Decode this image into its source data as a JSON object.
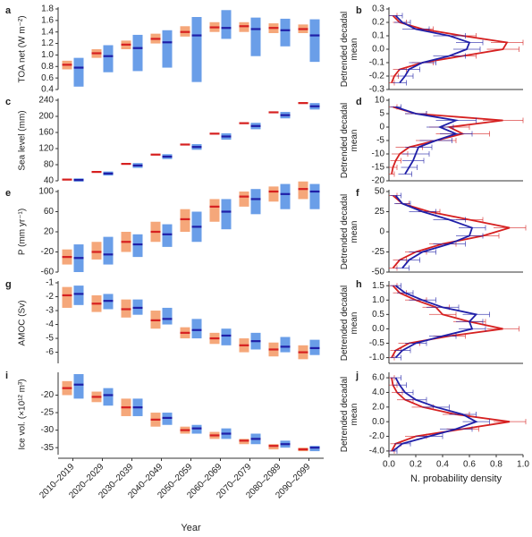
{
  "chart_data": [
    {
      "type": "range",
      "panel": "a",
      "ylabel": "TOA net (W m⁻²)",
      "ylim": [
        0.4,
        1.8
      ],
      "yticks": [
        0.4,
        0.6,
        0.8,
        {
          "value": 1,
          "label": "1.0"
        },
        1.2,
        1.4,
        1.6,
        1.8
      ],
      "series": [
        {
          "color": "#f5a77a",
          "line_color": "#d62020",
          "low": [
            0.75,
            0.95,
            1.1,
            1.2,
            1.32,
            1.4,
            1.4,
            1.38,
            1.38
          ],
          "high": [
            0.9,
            1.1,
            1.25,
            1.37,
            1.5,
            1.57,
            1.57,
            1.55,
            1.53
          ],
          "mean": [
            0.83,
            1.03,
            1.18,
            1.28,
            1.4,
            1.48,
            1.5,
            1.47,
            1.45
          ]
        },
        {
          "color": "#6a9ee8",
          "line_color": "#1f1fa8",
          "low": [
            0.45,
            0.7,
            0.72,
            0.78,
            0.53,
            1.28,
            0.98,
            1.15,
            0.88
          ],
          "high": [
            0.95,
            1.17,
            1.35,
            1.43,
            1.66,
            1.78,
            1.65,
            1.63,
            1.62
          ],
          "mean": [
            0.78,
            0.98,
            1.12,
            1.22,
            1.34,
            1.47,
            1.45,
            1.43,
            1.34
          ]
        }
      ]
    },
    {
      "type": "density",
      "panel": "b",
      "ylabel": "Detrended decadal mean",
      "xlim": [
        0,
        1
      ],
      "ylim": [
        -0.3,
        0.3
      ],
      "yticks": [
        -0.3,
        -0.2,
        -0.1,
        {
          "value": 0,
          "label": "0.0"
        },
        0.1,
        0.2,
        0.3
      ],
      "y": [
        -0.25,
        -0.2,
        -0.15,
        -0.1,
        -0.05,
        0,
        0.05,
        0.1,
        0.15,
        0.2,
        0.25
      ],
      "series": [
        {
          "color": "#d62020",
          "values": [
            0.02,
            0.04,
            0.08,
            0.25,
            0.55,
            0.85,
            0.88,
            0.55,
            0.25,
            0.08,
            0.03
          ],
          "errors": [
            0.02,
            0.03,
            0.05,
            0.08,
            0.1,
            0.12,
            0.12,
            0.1,
            0.08,
            0.05,
            0.03
          ]
        },
        {
          "color": "#1f1fa8",
          "values": [
            0.08,
            0.12,
            0.15,
            0.25,
            0.45,
            0.58,
            0.6,
            0.45,
            0.2,
            0.1,
            0.05
          ],
          "errors": [
            0.05,
            0.06,
            0.08,
            0.1,
            0.12,
            0.1,
            0.1,
            0.12,
            0.1,
            0.06,
            0.05
          ]
        }
      ]
    },
    {
      "type": "range",
      "panel": "c",
      "ylabel": "Sea level (mm)",
      "ylim": [
        40,
        240
      ],
      "yticks": [
        40,
        80,
        120,
        160,
        200,
        240
      ],
      "series": [
        {
          "color": "#f5a77a",
          "line_color": "#d62020",
          "low": [
            41,
            60,
            80,
            103,
            128,
            155,
            181,
            208,
            231
          ],
          "high": [
            45,
            64,
            84,
            107,
            132,
            159,
            185,
            212,
            235
          ],
          "mean": [
            43,
            62,
            82,
            105,
            130,
            157,
            183,
            210,
            233
          ]
        },
        {
          "color": "#6a9ee8",
          "line_color": "#1f1fa8",
          "low": [
            38,
            53,
            72,
            94,
            117,
            142,
            168,
            195,
            217
          ],
          "high": [
            46,
            63,
            84,
            106,
            131,
            158,
            184,
            211,
            233
          ],
          "mean": [
            42,
            58,
            78,
            100,
            124,
            150,
            176,
            203,
            225
          ]
        }
      ]
    },
    {
      "type": "density",
      "panel": "d",
      "ylabel": "Detrended decadal mean",
      "xlim": [
        0,
        1
      ],
      "ylim": [
        -20,
        10
      ],
      "yticks": [
        -20,
        -15,
        -10,
        -5,
        0,
        5,
        10
      ],
      "y": [
        -17.5,
        -15,
        -12.5,
        -10,
        -7.5,
        -5,
        -2.5,
        0,
        2.5,
        5,
        7.5
      ],
      "series": [
        {
          "color": "#d62020",
          "values": [
            0.02,
            0.03,
            0.05,
            0.08,
            0.15,
            0.35,
            0.55,
            0.45,
            0.85,
            0.2,
            0.03
          ],
          "errors": [
            0.02,
            0.03,
            0.04,
            0.06,
            0.1,
            0.15,
            0.2,
            0.15,
            0.15,
            0.08,
            0.03
          ]
        },
        {
          "color": "#1f1fa8",
          "values": [
            0.12,
            0.15,
            0.18,
            0.2,
            0.22,
            0.35,
            0.5,
            0.38,
            0.5,
            0.2,
            0.05
          ],
          "errors": [
            0.05,
            0.06,
            0.08,
            0.1,
            0.1,
            0.12,
            0.12,
            0.1,
            0.15,
            0.08,
            0.04
          ]
        }
      ]
    },
    {
      "type": "range",
      "panel": "e",
      "ylabel": "P (mm yr⁻¹)",
      "ylim": [
        -60,
        100
      ],
      "yticks": [
        -60,
        -20,
        20,
        60,
        100
      ],
      "series": [
        {
          "color": "#f5a77a",
          "line_color": "#d62020",
          "low": [
            -45,
            -35,
            -20,
            0,
            20,
            40,
            70,
            80,
            85
          ],
          "high": [
            -15,
            0,
            20,
            40,
            65,
            85,
            100,
            110,
            120
          ],
          "mean": [
            -30,
            -20,
            0,
            20,
            45,
            70,
            90,
            100,
            105
          ]
        },
        {
          "color": "#6a9ee8",
          "line_color": "#1f1fa8",
          "low": [
            -60,
            -45,
            -30,
            -10,
            0,
            25,
            55,
            65,
            65
          ],
          "high": [
            -5,
            10,
            15,
            35,
            60,
            85,
            105,
            115,
            115
          ],
          "mean": [
            -32,
            -25,
            -5,
            15,
            30,
            60,
            85,
            95,
            100
          ]
        }
      ]
    },
    {
      "type": "density",
      "panel": "f",
      "ylabel": "Detrended decadal mean",
      "xlim": [
        0,
        1
      ],
      "ylim": [
        -50,
        50
      ],
      "yticks": [
        -50,
        -25,
        0,
        25,
        50
      ],
      "y": [
        -45,
        -35,
        -25,
        -15,
        -5,
        5,
        15,
        25,
        35,
        45
      ],
      "series": [
        {
          "color": "#d62020",
          "values": [
            0.03,
            0.08,
            0.2,
            0.4,
            0.7,
            0.9,
            0.6,
            0.3,
            0.1,
            0.03
          ],
          "errors": [
            0.03,
            0.05,
            0.08,
            0.1,
            0.12,
            0.12,
            0.1,
            0.08,
            0.05,
            0.03
          ]
        },
        {
          "color": "#1f1fa8",
          "values": [
            0.1,
            0.15,
            0.25,
            0.45,
            0.6,
            0.62,
            0.45,
            0.25,
            0.1,
            0.05
          ],
          "errors": [
            0.05,
            0.08,
            0.1,
            0.12,
            0.1,
            0.1,
            0.12,
            0.1,
            0.06,
            0.04
          ]
        }
      ]
    },
    {
      "type": "range",
      "panel": "g",
      "ylabel": "AMOC (Sv)",
      "ylim": [
        -6.8,
        -1
      ],
      "yticks": [
        -6,
        -5,
        -4,
        -3,
        -2,
        -1
      ],
      "series": [
        {
          "color": "#f5a77a",
          "line_color": "#d62020",
          "low": [
            -2.8,
            -3.1,
            -3.5,
            -4.3,
            -5.0,
            -5.4,
            -6.0,
            -6.3,
            -6.5
          ],
          "high": [
            -1.3,
            -1.9,
            -2.2,
            -3.0,
            -4.2,
            -4.6,
            -5.0,
            -5.3,
            -5.5
          ],
          "mean": [
            -1.9,
            -2.5,
            -2.9,
            -3.7,
            -4.6,
            -5.0,
            -5.5,
            -5.8,
            -6.0
          ]
        },
        {
          "color": "#6a9ee8",
          "line_color": "#1f1fa8",
          "low": [
            -2.6,
            -2.9,
            -3.3,
            -4.0,
            -5.0,
            -5.5,
            -5.8,
            -6.0,
            -6.2
          ],
          "high": [
            -1.2,
            -1.8,
            -2.2,
            -2.8,
            -3.6,
            -4.3,
            -4.6,
            -4.9,
            -5.1
          ],
          "mean": [
            -1.8,
            -2.3,
            -2.8,
            -3.6,
            -4.4,
            -4.8,
            -5.2,
            -5.6,
            -5.7
          ]
        }
      ]
    },
    {
      "type": "density",
      "panel": "h",
      "ylabel": "Detrended decadal mean",
      "xlim": [
        0,
        1
      ],
      "ylim": [
        -1.2,
        1.6
      ],
      "yticks": [
        {
          "value": -1,
          "label": "-1.0"
        },
        -0.5,
        {
          "value": 0,
          "label": "0.0"
        },
        0.5,
        {
          "value": 1,
          "label": "1.0"
        },
        1.5
      ],
      "y": [
        -1.0,
        -0.75,
        -0.5,
        -0.25,
        0,
        0.25,
        0.5,
        0.75,
        1.0,
        1.25,
        1.5
      ],
      "series": [
        {
          "color": "#d62020",
          "values": [
            0.02,
            0.05,
            0.15,
            0.45,
            0.85,
            0.6,
            0.4,
            0.35,
            0.2,
            0.08,
            0.03
          ],
          "errors": [
            0.02,
            0.04,
            0.08,
            0.12,
            0.12,
            0.12,
            0.1,
            0.1,
            0.08,
            0.05,
            0.03
          ]
        },
        {
          "color": "#1f1fa8",
          "values": [
            0.05,
            0.1,
            0.2,
            0.4,
            0.62,
            0.6,
            0.65,
            0.4,
            0.25,
            0.12,
            0.05
          ],
          "errors": [
            0.04,
            0.06,
            0.08,
            0.1,
            0.1,
            0.1,
            0.1,
            0.12,
            0.1,
            0.06,
            0.04
          ]
        }
      ]
    },
    {
      "type": "range",
      "panel": "i",
      "ylabel": "Ice vol. (×10¹² m³)",
      "xlabel": "Year",
      "ylim": [
        -37,
        -14
      ],
      "yticks": [
        -35,
        -30,
        -25,
        -20
      ],
      "categories": [
        "2010–2019",
        "2020–2029",
        "2030–2039",
        "2040–2049",
        "2050–2059",
        "2060–2069",
        "2070–2079",
        "2080–2089",
        "2090–2099"
      ],
      "series": [
        {
          "color": "#f5a77a",
          "line_color": "#d62020",
          "low": [
            -20,
            -22,
            -26,
            -29,
            -31,
            -32.5,
            -34,
            -35.5,
            -36
          ],
          "high": [
            -16,
            -19,
            -21,
            -25,
            -29,
            -30.5,
            -32.5,
            -34,
            -35
          ],
          "mean": [
            -18,
            -20.5,
            -23.5,
            -27,
            -30,
            -31.5,
            -33,
            -34.5,
            -35.5
          ]
        },
        {
          "color": "#6a9ee8",
          "line_color": "#1f1fa8",
          "low": [
            -21,
            -23,
            -26,
            -28.5,
            -31,
            -32.5,
            -34,
            -35,
            -36
          ],
          "high": [
            -14,
            -18,
            -21,
            -25,
            -28.5,
            -29.5,
            -31,
            -33,
            -34.5
          ],
          "mean": [
            -17,
            -20,
            -23.5,
            -26.5,
            -29.5,
            -31,
            -32.5,
            -34,
            -35
          ]
        }
      ]
    },
    {
      "type": "density",
      "panel": "j",
      "ylabel": "Detrended decadal mean",
      "xlabel": "N. probability density",
      "xlim": [
        0,
        1
      ],
      "xticks": [
        {
          "value": 0,
          "label": "0.0"
        },
        0.2,
        0.4,
        0.6,
        0.8,
        {
          "value": 1,
          "label": "1.0"
        }
      ],
      "ylim": [
        -4.5,
        6.5
      ],
      "yticks": [
        {
          "value": -4,
          "label": "-4.0"
        },
        {
          "value": -2,
          "label": "-2.0"
        },
        {
          "value": 0,
          "label": "0.0"
        },
        {
          "value": 2,
          "label": "2.0"
        },
        {
          "value": 4,
          "label": "4.0"
        },
        {
          "value": 6,
          "label": "6.0"
        }
      ],
      "y": [
        -4,
        -3,
        -2,
        -1,
        0,
        1,
        2,
        3,
        4,
        5,
        6
      ],
      "series": [
        {
          "color": "#d62020",
          "values": [
            0.02,
            0.05,
            0.2,
            0.55,
            0.9,
            0.5,
            0.25,
            0.12,
            0.06,
            0.03,
            0.02
          ],
          "errors": [
            0.02,
            0.04,
            0.08,
            0.12,
            0.12,
            0.1,
            0.08,
            0.06,
            0.04,
            0.03,
            0.02
          ]
        },
        {
          "color": "#1f1fa8",
          "values": [
            0.03,
            0.1,
            0.3,
            0.5,
            0.65,
            0.55,
            0.35,
            0.2,
            0.12,
            0.08,
            0.05
          ],
          "errors": [
            0.03,
            0.06,
            0.1,
            0.12,
            0.1,
            0.1,
            0.1,
            0.08,
            0.06,
            0.05,
            0.04
          ]
        }
      ]
    }
  ]
}
